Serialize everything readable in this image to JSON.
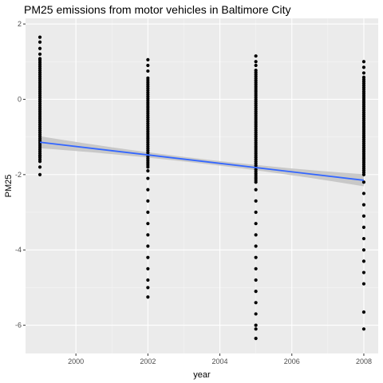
{
  "chart_data": {
    "type": "scatter",
    "title": "PM25 emissions from motor vehicles in Baltimore City",
    "xlabel": "year",
    "ylabel": "PM25",
    "xlim": [
      1998.6,
      2008.4
    ],
    "ylim": [
      -6.75,
      2.15
    ],
    "x_ticks": [
      2000,
      2002,
      2004,
      2006,
      2008
    ],
    "y_ticks": [
      2,
      0,
      -2,
      -4,
      -6
    ],
    "grid": true,
    "legend": "none",
    "colors": {
      "panel": "#ebebeb",
      "grid_major": "#ffffff",
      "grid_minor": "#f5f5f5",
      "points": "#000000",
      "fit_line": "#3366ff",
      "confidence_band": "#c2c2c2"
    },
    "series": [
      {
        "x": 1999,
        "y_min": -2.0,
        "y_max": 1.65,
        "dense_min": -1.6,
        "dense_max": 1.05,
        "points": [
          1.65,
          1.52,
          1.35,
          1.2,
          1.08,
          -1.5,
          -1.65,
          -1.8,
          -2.0
        ]
      },
      {
        "x": 2002,
        "y_min": -5.25,
        "y_max": 1.05,
        "dense_min": -1.8,
        "dense_max": 0.6,
        "points": [
          1.05,
          0.9,
          0.75,
          -1.9,
          -2.1,
          -2.4,
          -2.7,
          -3.0,
          -3.3,
          -3.6,
          -3.9,
          -4.2,
          -4.5,
          -4.8,
          -5.0,
          -5.25
        ]
      },
      {
        "x": 2005,
        "y_min": -6.35,
        "y_max": 1.15,
        "dense_min": -2.2,
        "dense_max": 0.8,
        "points": [
          1.15,
          1.0,
          0.9,
          -2.4,
          -2.7,
          -3.0,
          -3.3,
          -3.6,
          -3.9,
          -4.2,
          -4.5,
          -4.8,
          -5.1,
          -5.4,
          -5.7,
          -6.0,
          -6.1,
          -6.35
        ]
      },
      {
        "x": 2008,
        "y_min": -6.1,
        "y_max": 1.0,
        "dense_min": -2.0,
        "dense_max": 0.6,
        "points": [
          1.0,
          0.85,
          0.7,
          -2.2,
          -2.5,
          -2.8,
          -3.1,
          -3.4,
          -3.7,
          -4.0,
          -4.3,
          -4.6,
          -4.9,
          -5.65,
          -6.1
        ]
      }
    ],
    "fit": {
      "method": "linear",
      "x": [
        1999,
        2008
      ],
      "y": [
        -1.14,
        -2.15
      ],
      "band_halfwidth_ends": 0.16,
      "band_halfwidth_center": 0.06
    }
  }
}
